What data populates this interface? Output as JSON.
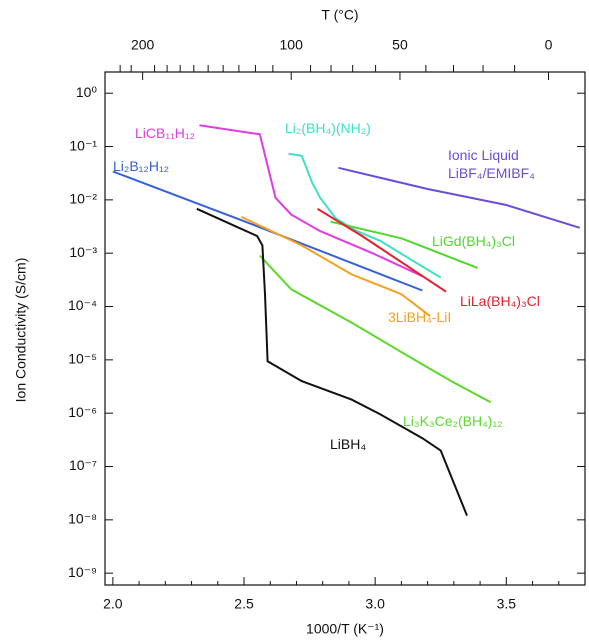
{
  "chart_data": {
    "type": "line",
    "x_label": "1000/T (K⁻¹)",
    "y_label": "Ion Conductivity (S/cm)",
    "x2_label": "T (°C)",
    "yscale": "log",
    "xlim": [
      1.97,
      3.8
    ],
    "ylim": [
      6e-10,
      2.5
    ],
    "xticks": [
      {
        "value": 2,
        "label": "2.0"
      },
      2.5,
      {
        "value": 3,
        "label": "3.0"
      },
      3.5
    ],
    "xminorticks": [
      2.1,
      2.2,
      2.3,
      2.4,
      2.6,
      2.7,
      2.8,
      2.9,
      3.1,
      3.2,
      3.3,
      3.4,
      3.6,
      3.7
    ],
    "x2ticks": [
      200,
      100,
      50,
      0
    ],
    "x2minorticks": [
      220,
      210,
      190,
      180,
      170,
      160,
      150,
      140,
      130,
      120,
      110,
      90,
      80,
      70,
      60,
      40,
      30,
      20,
      10
    ],
    "yticks": [
      {
        "value": 1,
        "label": "10⁰"
      },
      {
        "value": 0.1,
        "label": "10⁻¹"
      },
      {
        "value": 0.01,
        "label": "10⁻²"
      },
      {
        "value": 0.001,
        "label": "10⁻³"
      },
      {
        "value": 0.0001,
        "label": "10⁻⁴"
      },
      {
        "value": 1e-05,
        "label": "10⁻⁵"
      },
      {
        "value": 1e-06,
        "label": "10⁻⁶"
      },
      {
        "value": 1e-07,
        "label": "10⁻⁷"
      },
      {
        "value": 1e-08,
        "label": "10⁻⁸"
      },
      {
        "value": 1e-09,
        "label": "10⁻⁹"
      }
    ],
    "series": [
      {
        "name": "LiCB₁₁H₁₂",
        "color": "#e03ce0",
        "x": [
          2.33,
          2.56,
          2.62,
          2.68,
          2.79,
          2.99,
          3.18
        ],
        "values": [
          0.25,
          0.17,
          0.011,
          0.0053,
          0.0026,
          0.001,
          0.00037
        ]
      },
      {
        "name": "Li₂(BH₄)(NH₂)",
        "color": "#3ee0c4",
        "x": [
          2.67,
          2.72,
          2.76,
          2.79,
          2.85,
          2.93,
          3.02,
          3.14,
          3.25
        ],
        "values": [
          0.073,
          0.067,
          0.021,
          0.011,
          0.0045,
          0.0026,
          0.0017,
          0.00074,
          0.00035
        ]
      },
      {
        "name": "Ionic Liquid\nLiBF₄/EMIBF₄",
        "color": "#6a4ed8",
        "x": [
          2.86,
          3.2,
          3.5,
          3.78
        ],
        "values": [
          0.04,
          0.016,
          0.008,
          0.003
        ]
      },
      {
        "name": "Li₂B₁₂H₁₂",
        "color": "#3560d8",
        "x": [
          2.0,
          2.53,
          3.18
        ],
        "values": [
          0.034,
          0.0035,
          0.0002
        ]
      },
      {
        "name": "LiGd(BH₄)₃Cl",
        "color": "#4fd82c",
        "x": [
          2.83,
          3.1,
          3.39
        ],
        "values": [
          0.0039,
          0.0019,
          0.00053
        ]
      },
      {
        "name": "LiLa(BH₄)₃Cl",
        "color": "#e61e2e",
        "x": [
          2.78,
          2.95,
          3.27
        ],
        "values": [
          0.0068,
          0.0021,
          0.00019
        ]
      },
      {
        "name": "3LiBH₄-LiI",
        "color": "#f5a01e",
        "x": [
          2.49,
          2.72,
          2.91,
          3.1,
          3.21
        ],
        "values": [
          0.0048,
          0.0014,
          0.0004,
          0.00017,
          6.6e-05
        ]
      },
      {
        "name": "Li₃K₃Ce₂(BH₄)₁₂",
        "color": "#5cd82c",
        "x": [
          2.56,
          2.68,
          2.91,
          3.1,
          3.29,
          3.44
        ],
        "values": [
          0.0009,
          0.00021,
          5e-05,
          1.4e-05,
          4e-06,
          1.6e-06
        ]
      },
      {
        "name": "LiBH₄",
        "color": "#111111",
        "x": [
          2.32,
          2.45,
          2.55,
          2.57,
          2.58,
          2.59,
          2.72,
          2.91,
          3.02,
          3.18,
          3.25,
          3.35
        ],
        "values": [
          0.0068,
          0.0035,
          0.0021,
          0.0014,
          0.00017,
          9.4e-06,
          4e-06,
          1.8e-06,
          9.5e-07,
          3.4e-07,
          2e-07,
          1.2e-08
        ]
      }
    ]
  }
}
